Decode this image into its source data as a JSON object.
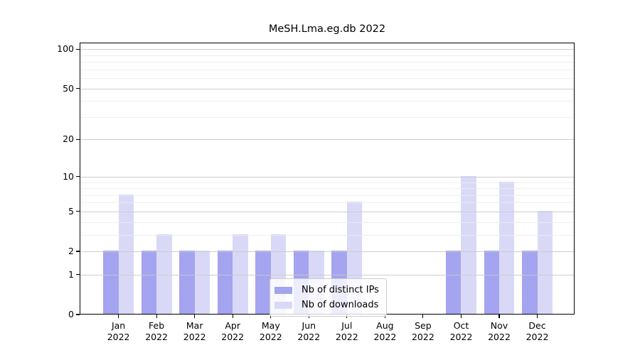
{
  "figure_title": "MeSH.Lma.eg.db 2022",
  "chart_data": {
    "type": "bar",
    "title": "MeSH.Lma.eg.db 2022",
    "categories": [
      "Jan",
      "Feb",
      "Mar",
      "Apr",
      "May",
      "Jun",
      "Jul",
      "Aug",
      "Sep",
      "Oct",
      "Nov",
      "Dec"
    ],
    "year_label": "2022",
    "series": [
      {
        "name": "Nb of distinct IPs",
        "color": "#a4a4f0",
        "values": [
          2,
          2,
          2,
          2,
          2,
          2,
          2,
          null,
          null,
          2,
          2,
          2
        ]
      },
      {
        "name": "Nb of downloads",
        "color": "#d9d9f7",
        "values": [
          7,
          3,
          2,
          3,
          3,
          2,
          6,
          null,
          null,
          10,
          9,
          5
        ]
      }
    ],
    "yscale": "log10(x+1)",
    "ylim": [
      0,
      112
    ],
    "yticks": [
      0,
      1,
      2,
      5,
      10,
      20,
      50,
      100
    ],
    "ytick_labels": [
      "0",
      "1",
      "2",
      "5",
      "10",
      "20",
      "50",
      "100"
    ],
    "yticks_minor": [
      3,
      4,
      6,
      7,
      8,
      9,
      30,
      40,
      60,
      70,
      80,
      90
    ],
    "grid": "on",
    "grid_major_color": "#c9c9c9",
    "grid_minor_color": "#ececec",
    "spine_color": "#000000",
    "legend_position": "lower center",
    "legend_labels": [
      "Nb of distinct IPs",
      "Nb of downloads"
    ]
  }
}
